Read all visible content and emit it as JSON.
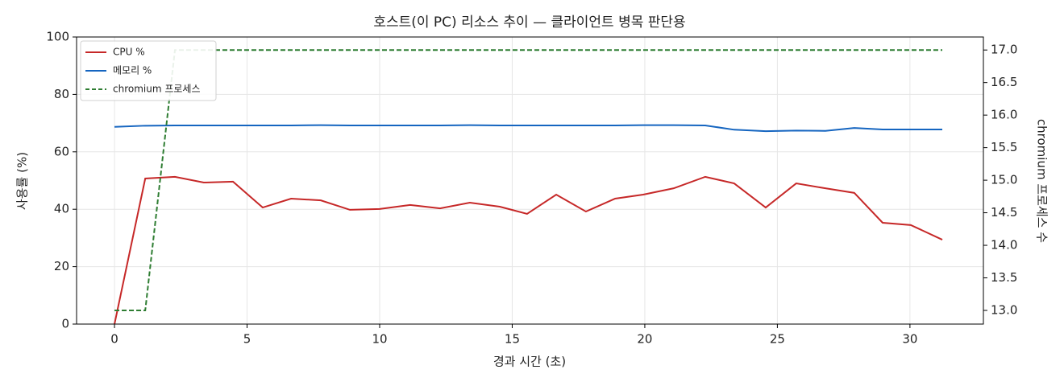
{
  "chart_data": {
    "type": "line",
    "title": "호스트(이 PC) 리소스 추이 — 클라이언트 병목 판단용",
    "x_label": "경과 시간 (초)",
    "y_label": "사용률 (%)",
    "y2_label": "chromium 프로세스 수",
    "x": [
      0,
      1.16,
      2.28,
      3.37,
      4.47,
      5.59,
      6.66,
      7.78,
      8.88,
      10.0,
      11.15,
      12.28,
      13.4,
      14.53,
      15.56,
      16.66,
      17.78,
      18.88,
      19.94,
      21.09,
      22.28,
      23.37,
      24.56,
      25.71,
      26.81,
      27.9,
      28.97,
      30.03,
      31.22
    ],
    "series": [
      {
        "name": "CPU %",
        "color": "#c62828",
        "values": [
          0,
          50.7,
          51.3,
          49.3,
          49.6,
          40.6,
          43.7,
          43.1,
          39.8,
          40.1,
          41.5,
          40.3,
          42.3,
          40.9,
          38.4,
          45.1,
          39.2,
          43.7,
          45.1,
          47.3,
          51.3,
          49.0,
          40.6,
          49.0,
          47.3,
          45.7,
          35.3,
          34.5,
          29.4
        ]
      },
      {
        "name": "메모리 %",
        "color": "#1565c0",
        "values": [
          68.7,
          69.1,
          69.2,
          69.2,
          69.2,
          69.2,
          69.2,
          69.3,
          69.2,
          69.2,
          69.2,
          69.2,
          69.3,
          69.2,
          69.2,
          69.2,
          69.2,
          69.2,
          69.3,
          69.3,
          69.2,
          67.7,
          67.2,
          67.4,
          67.3,
          68.3,
          67.8,
          67.8,
          67.8
        ]
      },
      {
        "name": "chromium 프로세스",
        "color": "#2e7d32",
        "dashed": true,
        "axis": "y2",
        "values": [
          13,
          13,
          17,
          17,
          17,
          17,
          17,
          17,
          17,
          17,
          17,
          17,
          17,
          17,
          17,
          17,
          17,
          17,
          17,
          17,
          17,
          17,
          17,
          17,
          17,
          17,
          17,
          17,
          17
        ]
      }
    ],
    "xlim": [
      -1.43,
      32.77
    ],
    "xticks": [
      0,
      5,
      10,
      15,
      20,
      25,
      30
    ],
    "ylim": [
      0,
      100
    ],
    "yticks": [
      0,
      20,
      40,
      60,
      80,
      100
    ],
    "y2lim": [
      12.79,
      17.2
    ],
    "y2ticks": [
      {
        "value": 13,
        "label": "13.0"
      },
      {
        "value": 13.5,
        "label": "13.5"
      },
      {
        "value": 14,
        "label": "14.0"
      },
      {
        "value": 14.5,
        "label": "14.5"
      },
      {
        "value": 15,
        "label": "15.0"
      },
      {
        "value": 15.5,
        "label": "15.5"
      },
      {
        "value": 16,
        "label": "16.0"
      },
      {
        "value": 16.5,
        "label": "16.5"
      },
      {
        "value": 17,
        "label": "17.0"
      }
    ],
    "grid": true,
    "legend": "upper-left"
  }
}
